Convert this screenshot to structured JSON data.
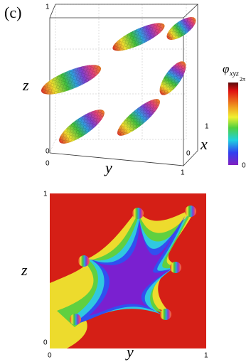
{
  "panel_label": "(c)",
  "plot_3d": {
    "axis_labels": {
      "z": "z",
      "y": "y",
      "x": "x"
    },
    "tick_labels": {
      "z_top": "1",
      "z_bottom": "0",
      "y_start": "0",
      "y_end": "1",
      "x_start": "0",
      "x_end": "1"
    }
  },
  "colorbar": {
    "symbol": "φ",
    "subscript": "xyz",
    "max_label": "2π",
    "min_label": "0"
  },
  "plot_2d": {
    "axis_labels": {
      "z": "z",
      "y": "y"
    },
    "tick_labels": {
      "z_top": "1",
      "z_bottom": "0",
      "y_start": "0",
      "y_end": "1"
    }
  }
}
